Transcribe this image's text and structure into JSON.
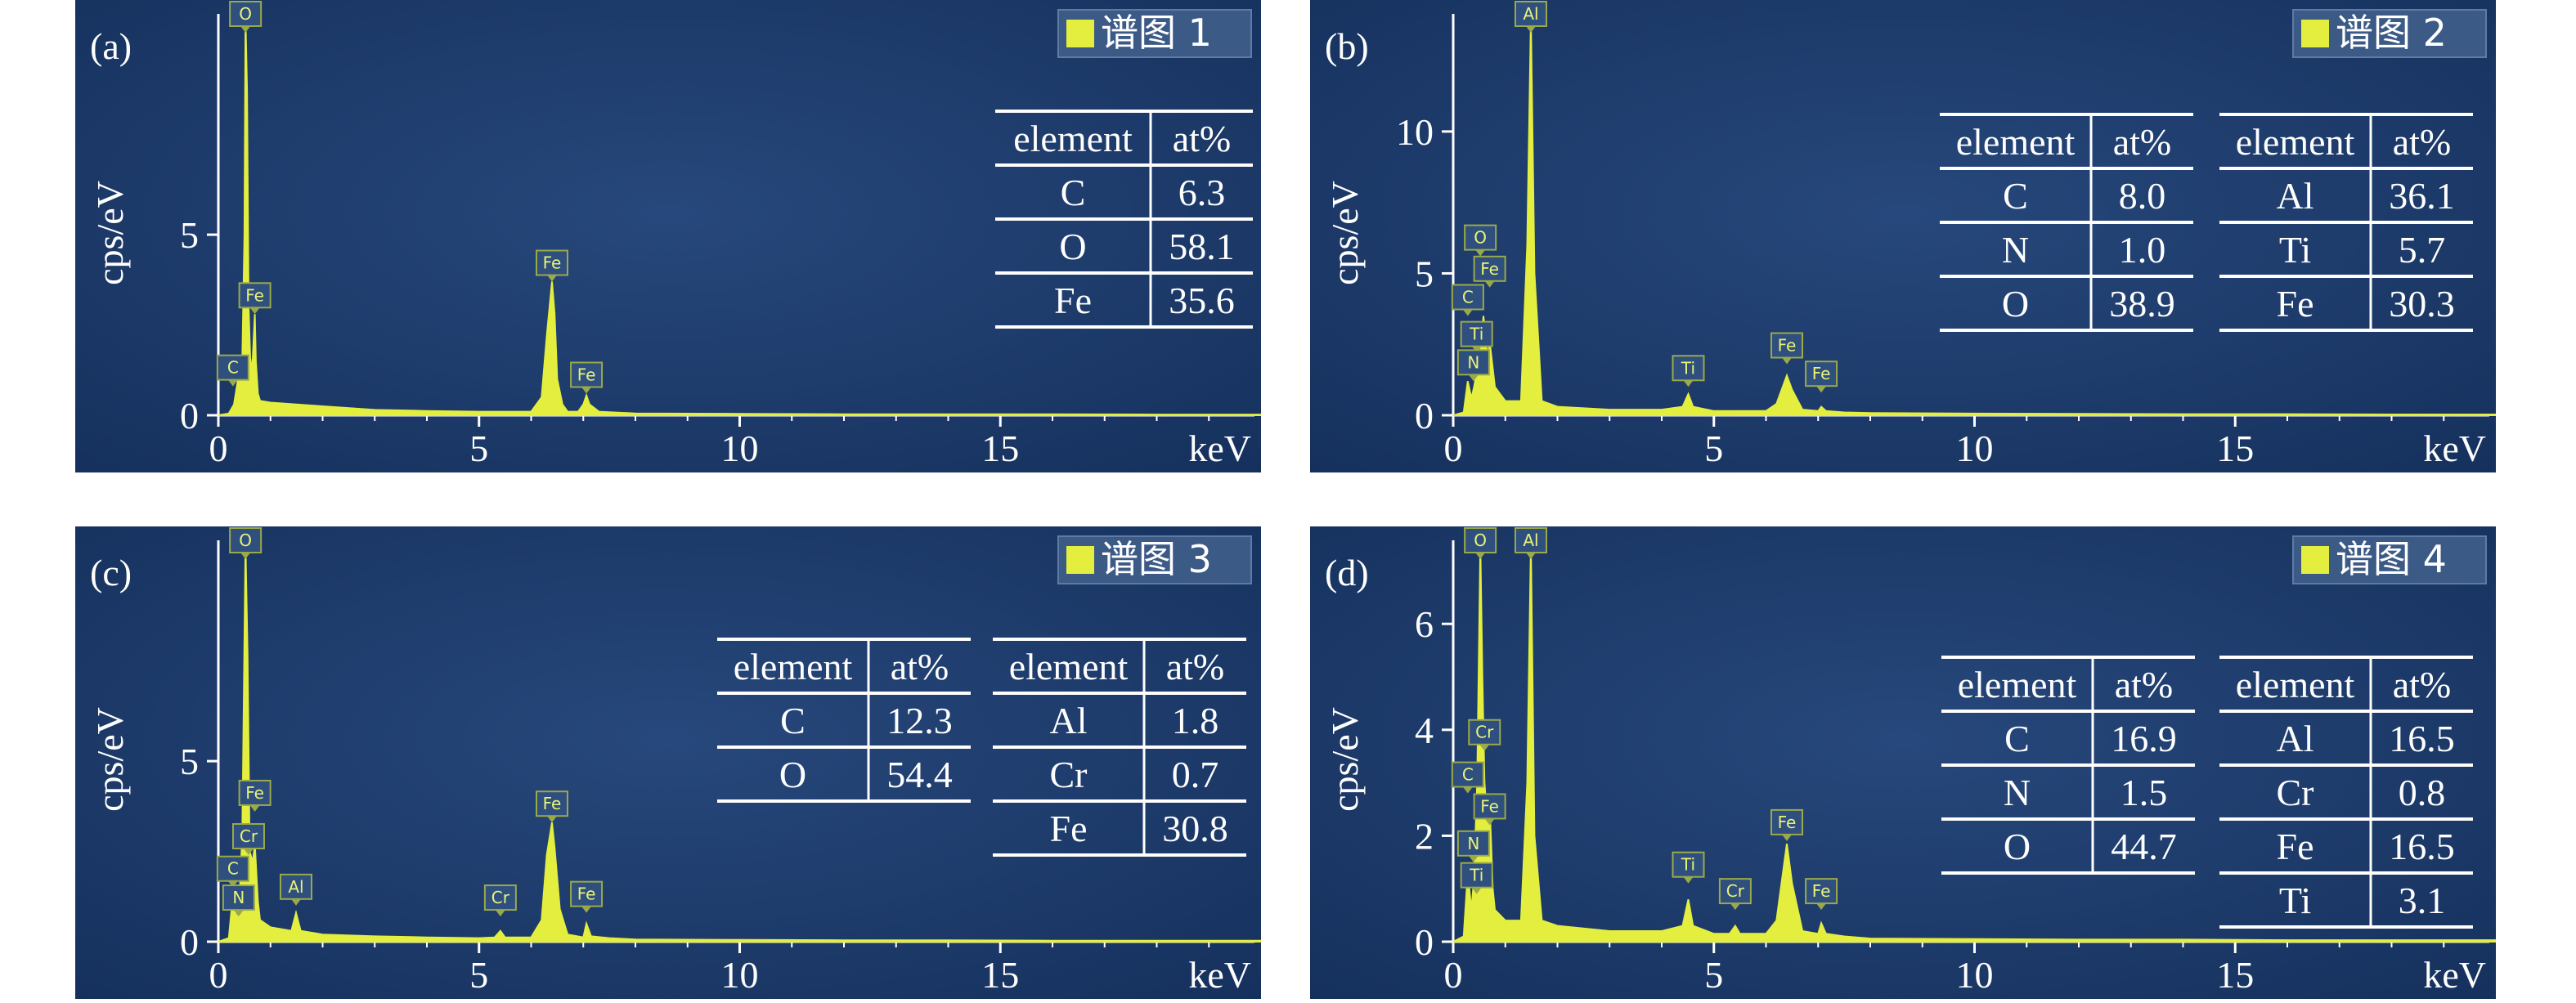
{
  "chart_data": [
    {
      "panel": "(a)",
      "type": "line",
      "legend": "谱图 1",
      "xlabel": "keV",
      "ylabel": "cps/eV",
      "xlim": [
        0,
        20
      ],
      "ylim": [
        0,
        11
      ],
      "xticks": [
        "0",
        "5",
        "10",
        "15"
      ],
      "yticks": [
        "0",
        "5"
      ],
      "series": [
        {
          "x": [
            0,
            0.2,
            0.3,
            0.4,
            0.45,
            0.5,
            0.52,
            0.55,
            0.58,
            0.62,
            0.66,
            0.7,
            0.72,
            0.76,
            0.8,
            1,
            1.5,
            2,
            3,
            4,
            5,
            6,
            6.2,
            6.3,
            6.4,
            6.45,
            6.5,
            6.6,
            6.7,
            6.9,
            7.0,
            7.06,
            7.12,
            7.3,
            8,
            10,
            12,
            14,
            16,
            18,
            20
          ],
          "y": [
            0,
            0.05,
            0.3,
            1.2,
            0.8,
            5,
            11,
            9,
            3,
            1.2,
            1.6,
            2.8,
            1.5,
            0.6,
            0.4,
            0.35,
            0.3,
            0.25,
            0.15,
            0.12,
            0.1,
            0.1,
            0.5,
            2.2,
            3.7,
            2.8,
            1.0,
            0.3,
            0.1,
            0.1,
            0.3,
            0.55,
            0.3,
            0.1,
            0.05,
            0.04,
            0.03,
            0.03,
            0.03,
            0.02,
            0.02
          ]
        }
      ],
      "peak_labels": [
        {
          "label": "O",
          "x": 0.52,
          "y": 11
        },
        {
          "label": "Fe",
          "x": 0.7,
          "y": 2.8
        },
        {
          "label": "C",
          "x": 0.28,
          "y": 0.8
        },
        {
          "label": "Fe",
          "x": 6.4,
          "y": 3.7
        },
        {
          "label": "Fe",
          "x": 7.06,
          "y": 0.6
        }
      ],
      "tables": [
        {
          "headers": [
            "element",
            "at%"
          ],
          "rows": [
            [
              "C",
              "6.3"
            ],
            [
              "O",
              "58.1"
            ],
            [
              "Fe",
              "35.6"
            ]
          ]
        }
      ]
    },
    {
      "panel": "(b)",
      "type": "line",
      "legend": "谱图 2",
      "xlabel": "keV",
      "ylabel": "cps/eV",
      "xlim": [
        0,
        20
      ],
      "ylim": [
        0,
        14
      ],
      "xticks": [
        "0",
        "5",
        "10",
        "15"
      ],
      "yticks": [
        "0",
        "5",
        "10"
      ],
      "series": [
        {
          "x": [
            0,
            0.2,
            0.28,
            0.35,
            0.4,
            0.52,
            0.58,
            0.66,
            0.7,
            0.8,
            1.0,
            1.3,
            1.42,
            1.49,
            1.56,
            1.7,
            2,
            3,
            4,
            4.4,
            4.51,
            4.6,
            5,
            6,
            6.2,
            6.4,
            6.5,
            6.7,
            7,
            7.06,
            7.15,
            7.5,
            8,
            10,
            12,
            14,
            16,
            18,
            20
          ],
          "y": [
            0,
            0.1,
            1.2,
            0.6,
            1.0,
            2.2,
            3.5,
            2.0,
            2.6,
            1.0,
            0.5,
            0.5,
            6,
            14,
            5,
            0.5,
            0.3,
            0.2,
            0.2,
            0.3,
            0.75,
            0.3,
            0.15,
            0.15,
            0.4,
            1.4,
            0.9,
            0.2,
            0.15,
            0.3,
            0.15,
            0.1,
            0.08,
            0.06,
            0.05,
            0.04,
            0.04,
            0.03,
            0.03
          ]
        }
      ],
      "peak_labels": [
        {
          "label": "Al",
          "x": 1.49,
          "y": 14
        },
        {
          "label": "O",
          "x": 0.52,
          "y": 5.6
        },
        {
          "label": "Fe",
          "x": 0.7,
          "y": 4.5
        },
        {
          "label": "C",
          "x": 0.28,
          "y": 3.5
        },
        {
          "label": "Ti",
          "x": 0.45,
          "y": 2.2
        },
        {
          "label": "N",
          "x": 0.39,
          "y": 1.2
        },
        {
          "label": "Ti",
          "x": 4.51,
          "y": 1.0
        },
        {
          "label": "Fe",
          "x": 6.4,
          "y": 1.8
        },
        {
          "label": "Fe",
          "x": 7.06,
          "y": 0.8
        }
      ],
      "tables": [
        {
          "headers": [
            "element",
            "at%"
          ],
          "rows": [
            [
              "C",
              "8.0"
            ],
            [
              "N",
              "1.0"
            ],
            [
              "O",
              "38.9"
            ]
          ]
        },
        {
          "headers": [
            "element",
            "at%"
          ],
          "rows": [
            [
              "Al",
              "36.1"
            ],
            [
              "Ti",
              "5.7"
            ],
            [
              "Fe",
              "30.3"
            ]
          ]
        }
      ]
    },
    {
      "panel": "(c)",
      "type": "line",
      "legend": "谱图 3",
      "xlabel": "keV",
      "ylabel": "cps/eV",
      "xlim": [
        0,
        20
      ],
      "ylim": [
        0,
        11
      ],
      "xticks": [
        "0",
        "5",
        "10",
        "15"
      ],
      "yticks": [
        "0",
        "5"
      ],
      "series": [
        {
          "x": [
            0,
            0.2,
            0.28,
            0.35,
            0.4,
            0.46,
            0.52,
            0.56,
            0.6,
            0.66,
            0.7,
            0.76,
            0.8,
            1.0,
            1.4,
            1.49,
            1.58,
            2,
            3,
            4,
            5,
            5.3,
            5.41,
            5.5,
            6,
            6.2,
            6.3,
            6.4,
            6.45,
            6.55,
            6.7,
            7,
            7.06,
            7.15,
            7.5,
            8,
            10,
            12,
            14,
            16,
            18,
            20
          ],
          "y": [
            0,
            0.1,
            1.3,
            0.6,
            1.0,
            3,
            11,
            8,
            2.5,
            2.2,
            2.7,
            1.1,
            0.6,
            0.4,
            0.3,
            0.8,
            0.3,
            0.2,
            0.15,
            0.12,
            0.1,
            0.12,
            0.3,
            0.12,
            0.12,
            0.6,
            2.4,
            3.3,
            2.6,
            0.9,
            0.2,
            0.12,
            0.5,
            0.15,
            0.1,
            0.06,
            0.05,
            0.04,
            0.04,
            0.03,
            0.03,
            0.03
          ]
        }
      ],
      "peak_labels": [
        {
          "label": "O",
          "x": 0.52,
          "y": 11
        },
        {
          "label": "Fe",
          "x": 0.7,
          "y": 3.6
        },
        {
          "label": "Cr",
          "x": 0.58,
          "y": 2.4
        },
        {
          "label": "C",
          "x": 0.28,
          "y": 1.5
        },
        {
          "label": "N",
          "x": 0.39,
          "y": 0.7
        },
        {
          "label": "Al",
          "x": 1.49,
          "y": 1.0
        },
        {
          "label": "Cr",
          "x": 5.41,
          "y": 0.7
        },
        {
          "label": "Fe",
          "x": 6.4,
          "y": 3.3
        },
        {
          "label": "Fe",
          "x": 7.06,
          "y": 0.8
        }
      ],
      "tables": [
        {
          "headers": [
            "element",
            "at%"
          ],
          "rows": [
            [
              "C",
              "12.3"
            ],
            [
              "O",
              "54.4"
            ]
          ]
        },
        {
          "headers": [
            "element",
            "at%"
          ],
          "rows": [
            [
              "Al",
              "1.8"
            ],
            [
              "Cr",
              "0.7"
            ],
            [
              "Fe",
              "30.8"
            ]
          ]
        }
      ]
    },
    {
      "panel": "(d)",
      "type": "line",
      "legend": "谱图 4",
      "xlabel": "keV",
      "ylabel": "cps/eV",
      "xlim": [
        0,
        20
      ],
      "ylim": [
        0,
        7.5
      ],
      "xticks": [
        "0",
        "5",
        "10",
        "15"
      ],
      "yticks": [
        "0",
        "2",
        "4",
        "6"
      ],
      "series": [
        {
          "x": [
            0,
            0.2,
            0.28,
            0.35,
            0.4,
            0.46,
            0.52,
            0.56,
            0.6,
            0.66,
            0.7,
            0.76,
            0.8,
            1.0,
            1.3,
            1.42,
            1.49,
            1.56,
            1.7,
            2,
            3,
            4,
            4.4,
            4.51,
            4.6,
            5,
            5.3,
            5.41,
            5.5,
            6,
            6.2,
            6.4,
            6.5,
            6.7,
            7,
            7.06,
            7.15,
            7.5,
            8,
            10,
            12,
            14,
            16,
            18,
            20
          ],
          "y": [
            0,
            0.1,
            1.3,
            0.6,
            1.2,
            3,
            7.5,
            5,
            3,
            2.2,
            2.6,
            1.0,
            0.6,
            0.4,
            0.4,
            3,
            7.5,
            2,
            0.4,
            0.3,
            0.2,
            0.2,
            0.3,
            0.8,
            0.3,
            0.15,
            0.15,
            0.3,
            0.15,
            0.15,
            0.4,
            1.85,
            1.1,
            0.2,
            0.15,
            0.35,
            0.15,
            0.1,
            0.06,
            0.05,
            0.04,
            0.04,
            0.03,
            0.03,
            0.03
          ]
        }
      ],
      "peak_labels": [
        {
          "label": "O",
          "x": 0.52,
          "y": 7.5
        },
        {
          "label": "Al",
          "x": 1.49,
          "y": 7.5
        },
        {
          "label": "Cr",
          "x": 0.6,
          "y": 3.6
        },
        {
          "label": "C",
          "x": 0.28,
          "y": 2.8
        },
        {
          "label": "Fe",
          "x": 0.7,
          "y": 2.2
        },
        {
          "label": "N",
          "x": 0.39,
          "y": 1.5
        },
        {
          "label": "Ti",
          "x": 0.45,
          "y": 0.9
        },
        {
          "label": "Ti",
          "x": 4.51,
          "y": 1.1
        },
        {
          "label": "Cr",
          "x": 5.41,
          "y": 0.6
        },
        {
          "label": "Fe",
          "x": 6.4,
          "y": 1.9
        },
        {
          "label": "Fe",
          "x": 7.06,
          "y": 0.6
        }
      ],
      "tables": [
        {
          "headers": [
            "element",
            "at%"
          ],
          "rows": [
            [
              "C",
              "16.9"
            ],
            [
              "N",
              "1.5"
            ],
            [
              "O",
              "44.7"
            ]
          ]
        },
        {
          "headers": [
            "element",
            "at%"
          ],
          "rows": [
            [
              "Al",
              "16.5"
            ],
            [
              "Cr",
              "0.8"
            ],
            [
              "Fe",
              "16.5"
            ],
            [
              "Ti",
              "3.1"
            ]
          ]
        }
      ]
    }
  ],
  "colors": {
    "background": "#1e3a6b",
    "background_edge": "#15305c",
    "spectrum": "#e3ee3f",
    "text": "#ffffff"
  }
}
